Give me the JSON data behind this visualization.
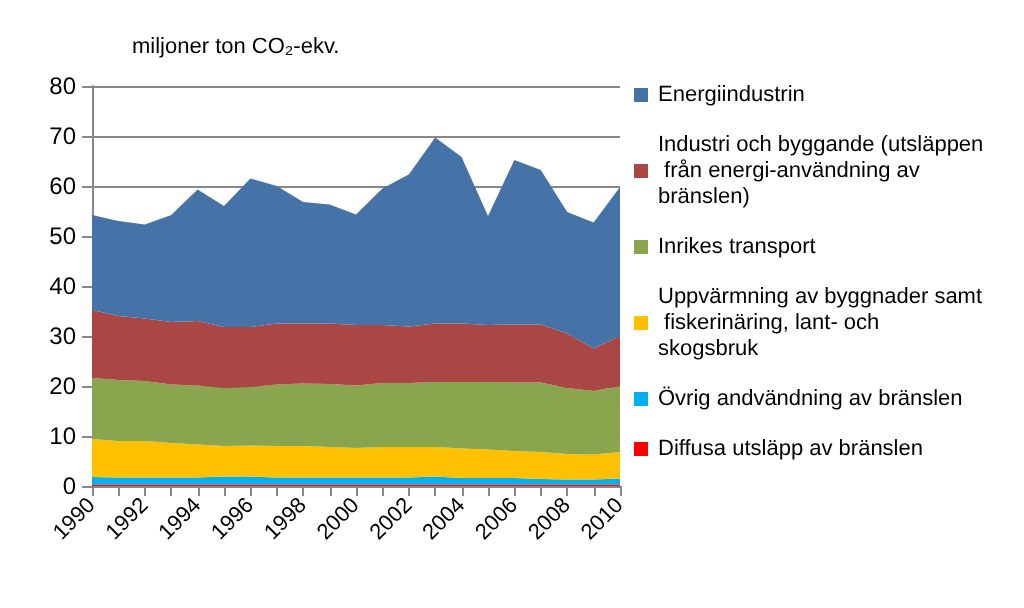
{
  "chart_data": {
    "type": "area",
    "stacked": true,
    "ylabel": "miljoner ton CO₂-ekv.",
    "categories": [
      "1990",
      null,
      "1992",
      null,
      "1994",
      null,
      "1996",
      null,
      "1998",
      null,
      "2000",
      null,
      "2002",
      null,
      "2004",
      null,
      "2006",
      null,
      "2008",
      null,
      "2010"
    ],
    "series": [
      {
        "name": "Diffusa utsläpp av bränslen",
        "color": "#ff0000",
        "values": [
          0.3,
          0.3,
          0.3,
          0.3,
          0.3,
          0.3,
          0.3,
          0.3,
          0.3,
          0.3,
          0.3,
          0.3,
          0.3,
          0.3,
          0.3,
          0.3,
          0.3,
          0.3,
          0.3,
          0.3,
          0.3
        ]
      },
      {
        "name": "Övrig andvändning av bränslen",
        "color": "#00b0f0",
        "values": [
          1.5,
          1.4,
          1.4,
          1.4,
          1.4,
          1.6,
          1.6,
          1.4,
          1.4,
          1.4,
          1.4,
          1.4,
          1.4,
          1.6,
          1.3,
          1.3,
          1.3,
          1.1,
          1.0,
          1.0,
          1.2
        ]
      },
      {
        "name": "Uppvärmning av byggnader samt fiskerinäring, lant- och skogsbruk",
        "color": "#ffc000",
        "values": [
          7.6,
          7.3,
          7.3,
          6.9,
          6.6,
          6.1,
          6.2,
          6.3,
          6.3,
          6.1,
          5.9,
          6.1,
          6.1,
          5.9,
          5.9,
          5.7,
          5.4,
          5.4,
          5.1,
          5.0,
          5.3
        ]
      },
      {
        "name": "Inrikes transport",
        "color": "#89a54e",
        "values": [
          12.2,
          12.2,
          12.0,
          11.7,
          11.8,
          11.6,
          11.7,
          12.3,
          12.5,
          12.6,
          12.5,
          12.8,
          12.8,
          13.0,
          13.3,
          13.5,
          13.7,
          13.9,
          13.2,
          12.7,
          13.2
        ]
      },
      {
        "name": "Industri och byggande (utsläppen från energi-användning av bränslen)",
        "color": "#aa4643",
        "values": [
          13.6,
          12.8,
          12.5,
          12.5,
          12.9,
          12.2,
          12.0,
          12.2,
          12.0,
          12.1,
          12.1,
          11.6,
          11.3,
          11.7,
          11.7,
          11.4,
          11.6,
          11.6,
          10.9,
          8.5,
          10.0
        ]
      },
      {
        "name": "Energiindustrin",
        "color": "#4572a7",
        "values": [
          19.0,
          19.0,
          18.8,
          21.4,
          26.3,
          24.2,
          29.7,
          27.5,
          24.3,
          23.8,
          22.1,
          27.3,
          30.4,
          37.2,
          33.3,
          21.8,
          32.9,
          30.9,
          24.3,
          25.2,
          29.8
        ]
      }
    ],
    "ylim": [
      0,
      80
    ],
    "yticks": [
      0,
      10,
      20,
      30,
      40,
      50,
      60,
      70,
      80
    ],
    "grid": "y",
    "legend": "right"
  }
}
